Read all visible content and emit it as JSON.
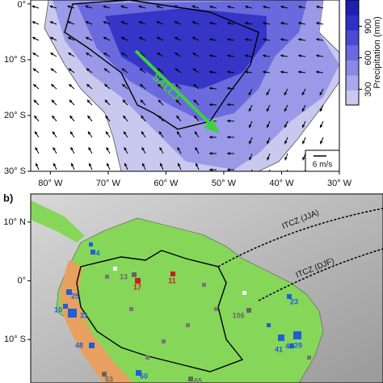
{
  "panel_a": {
    "xaxis": {
      "lim": [
        -83.4,
        -30
      ],
      "ticks": [
        {
          "value": -80,
          "label": "80° W"
        },
        {
          "value": -70,
          "label": "70° W"
        },
        {
          "value": -60,
          "label": "60° W"
        },
        {
          "value": -50,
          "label": "50° W"
        },
        {
          "value": -40,
          "label": "40° W"
        },
        {
          "value": -30,
          "label": "30° W"
        }
      ]
    },
    "yaxis": {
      "lim": [
        -30,
        0.7
      ],
      "ticks": [
        {
          "value": 0,
          "label": "0°"
        },
        {
          "value": -10,
          "label": "10° S"
        },
        {
          "value": -20,
          "label": "20° S"
        },
        {
          "value": -30,
          "label": "30° S"
        }
      ]
    },
    "colorbar": {
      "label": "Precipitation (mm)",
      "lim": [
        150,
        1150
      ],
      "ticks": [
        300,
        600,
        900
      ]
    },
    "jet_label": "SALLJ",
    "scale_label": "6 m/s"
  },
  "panel_b": {
    "label": "b)",
    "yaxis": {
      "lim": [
        -17.4,
        14.8
      ],
      "ticks": [
        {
          "value": 10,
          "label": "10° N"
        },
        {
          "value": 0,
          "label": "0°"
        },
        {
          "value": -10,
          "label": "10° S"
        }
      ]
    },
    "itcz_labels": [
      "ITCZ (JJA)",
      "ITCZ (DJF)"
    ],
    "stations": [
      {
        "label": "4",
        "color": "#1f5fd6"
      },
      {
        "label": "13",
        "color": "#666666"
      },
      {
        "label": "17",
        "color": "#c81e1e"
      },
      {
        "label": "11",
        "color": "#c81e1e"
      },
      {
        "label": "106",
        "color": "#666666"
      },
      {
        "label": "23",
        "color": "#1f5fd6"
      },
      {
        "label": "25",
        "color": "#1f5fd6"
      },
      {
        "label": "10",
        "color": "#1f5fd6"
      },
      {
        "label": "31",
        "color": "#1f5fd6"
      },
      {
        "label": "29",
        "color": "#1f5fd6"
      },
      {
        "label": "48",
        "color": "#1f5fd6"
      },
      {
        "label": "41",
        "color": "#1f5fd6"
      },
      {
        "label": "45",
        "color": "#1f5fd6"
      },
      {
        "label": "53",
        "color": "#666666"
      },
      {
        "label": "60",
        "color": "#1f5fd6"
      },
      {
        "label": "65",
        "color": "#666666"
      }
    ]
  }
}
